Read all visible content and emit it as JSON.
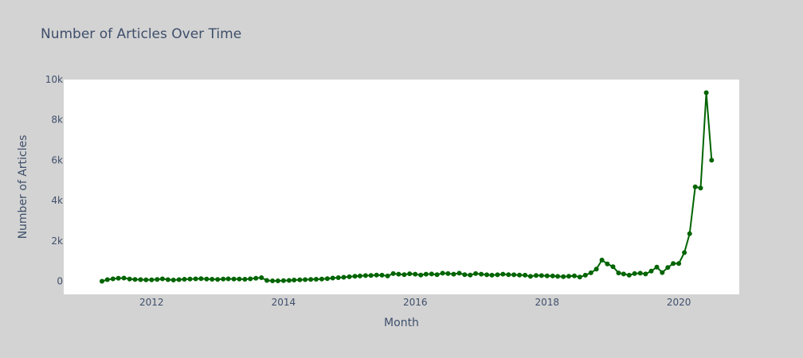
{
  "chart_data": {
    "type": "line",
    "title": "Number of Articles Over Time",
    "xlabel": "Month",
    "ylabel": "Number of Articles",
    "xlim": [
      "2010-09-01",
      "2020-12-01"
    ],
    "ylim": [
      -650,
      10000
    ],
    "x_ticks": [
      {
        "label": "2012",
        "date": "2012-01-01"
      },
      {
        "label": "2014",
        "date": "2014-01-01"
      },
      {
        "label": "2016",
        "date": "2016-01-01"
      },
      {
        "label": "2018",
        "date": "2018-01-01"
      },
      {
        "label": "2020",
        "date": "2020-01-01"
      }
    ],
    "y_ticks": [
      {
        "label": "0",
        "value": 0
      },
      {
        "label": "2k",
        "value": 2000
      },
      {
        "label": "4k",
        "value": 4000
      },
      {
        "label": "6k",
        "value": 6000
      },
      {
        "label": "8k",
        "value": 8000
      },
      {
        "label": "10k",
        "value": 10000
      }
    ],
    "grid": false,
    "series": [
      {
        "color": "#006400",
        "start_month": "2011-04",
        "values": [
          0,
          80,
          120,
          150,
          160,
          110,
          90,
          80,
          70,
          70,
          90,
          120,
          80,
          60,
          80,
          100,
          110,
          120,
          130,
          110,
          100,
          90,
          110,
          120,
          110,
          110,
          100,
          120,
          150,
          180,
          40,
          20,
          20,
          30,
          40,
          60,
          70,
          80,
          90,
          100,
          110,
          130,
          160,
          180,
          200,
          220,
          250,
          260,
          280,
          290,
          310,
          300,
          260,
          380,
          350,
          330,
          370,
          350,
          310,
          350,
          360,
          330,
          400,
          380,
          350,
          400,
          330,
          310,
          380,
          350,
          320,
          300,
          320,
          350,
          330,
          320,
          310,
          300,
          240,
          290,
          280,
          270,
          260,
          240,
          230,
          250,
          270,
          210,
          300,
          420,
          600,
          1050,
          860,
          720,
          410,
          360,
          300,
          380,
          400,
          360,
          500,
          700,
          430,
          680,
          880,
          880,
          1420,
          2360,
          4680,
          4620,
          9350,
          6000
        ]
      }
    ]
  }
}
